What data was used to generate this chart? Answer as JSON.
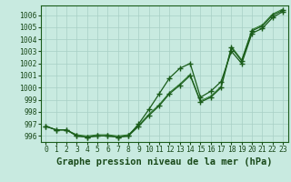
{
  "title": "Graphe pression niveau de la mer (hPa)",
  "xlabel_hours": [
    0,
    1,
    2,
    3,
    4,
    5,
    6,
    7,
    8,
    9,
    10,
    11,
    12,
    13,
    14,
    15,
    16,
    17,
    18,
    19,
    20,
    21,
    22,
    23
  ],
  "line1": [
    996.8,
    996.5,
    996.5,
    996.0,
    995.9,
    996.0,
    996.0,
    995.9,
    996.0,
    996.8,
    997.7,
    998.5,
    999.5,
    1000.2,
    1001.0,
    998.8,
    999.2,
    1000.0,
    1003.3,
    1002.2,
    1004.7,
    1005.1,
    1006.0,
    1006.4
  ],
  "line2": [
    996.8,
    996.5,
    996.5,
    996.1,
    996.0,
    996.1,
    996.1,
    996.0,
    996.1,
    996.9,
    997.8,
    998.6,
    999.6,
    1000.3,
    1001.1,
    998.9,
    999.3,
    1000.1,
    1003.4,
    1002.3,
    1004.8,
    1005.2,
    1006.1,
    1006.5
  ],
  "line3": [
    996.8,
    996.5,
    996.5,
    996.0,
    995.9,
    996.0,
    996.0,
    995.9,
    996.0,
    997.0,
    998.2,
    999.5,
    1000.8,
    1001.6,
    1002.0,
    999.2,
    999.7,
    1000.5,
    1003.0,
    1002.0,
    1004.5,
    1004.9,
    1005.8,
    1006.3
  ],
  "line_color_dark": "#1a5c1a",
  "line_color_med": "#2a7a2a",
  "bg_color": "#c8eae0",
  "grid_color": "#a8cfc5",
  "text_color": "#1a4a1a",
  "ylim_min": 995.5,
  "ylim_max": 1006.8,
  "yticks": [
    996,
    997,
    998,
    999,
    1000,
    1001,
    1002,
    1003,
    1004,
    1005,
    1006
  ],
  "marker": "+",
  "marker_size": 4.5,
  "title_fontsize": 7.5,
  "tick_fontsize": 5.8,
  "lw_main": 0.9,
  "lw_thin": 0.7
}
